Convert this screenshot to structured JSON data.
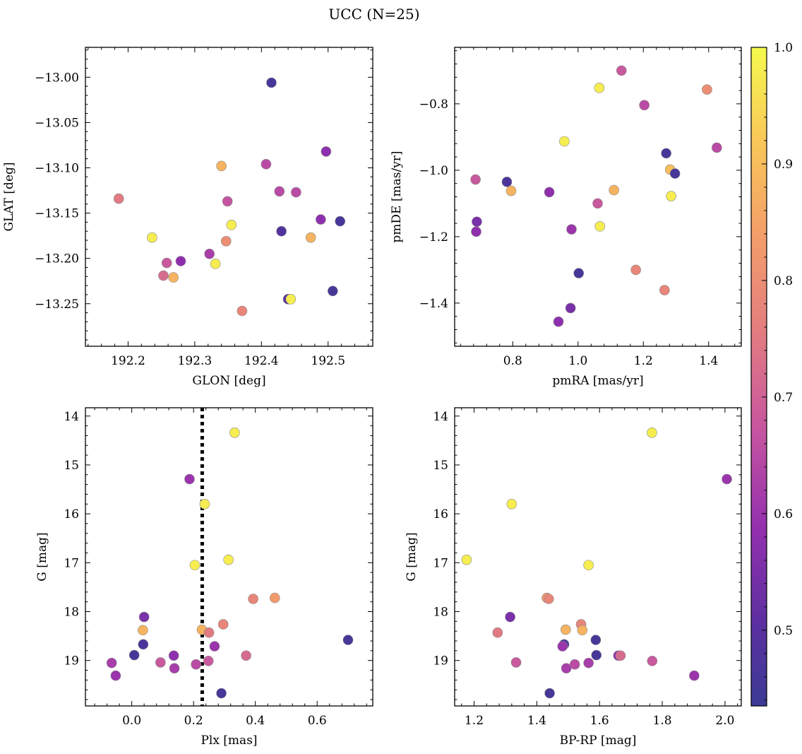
{
  "figure": {
    "title": "UCC (N=25)"
  },
  "colors": {
    "point_edge": "#8a8a8a",
    "ref_line": "#000000",
    "colormap": "plasma"
  },
  "colorbar": {
    "range": [
      0.435,
      1.0
    ],
    "ticks": [
      0.5,
      0.6,
      0.7,
      0.8,
      0.9,
      1.0
    ],
    "tick_labels": [
      "0.5",
      "0.6",
      "0.7",
      "0.8",
      "0.9",
      "1.0"
    ]
  },
  "chart_data": [
    {
      "id": "glon-glat",
      "type": "scatter",
      "xlabel": "GLON [deg]",
      "ylabel": "GLAT [deg]",
      "xlim": [
        192.136,
        192.567
      ],
      "ylim": [
        -13.297,
        -12.967
      ],
      "y_inverted": false,
      "xticks": [
        192.2,
        192.3,
        192.4,
        192.5
      ],
      "xtick_labels": [
        "192.2",
        "192.3",
        "192.4",
        "192.5"
      ],
      "yticks": [
        -13.25,
        -13.2,
        -13.15,
        -13.1,
        -13.05,
        -13.0
      ],
      "ytick_labels": [
        "−13.25",
        "−13.20",
        "−13.15",
        "−13.10",
        "−13.05",
        "−13.00"
      ],
      "points": [
        {
          "x": 192.415,
          "y": -13.006,
          "c": 0.46
        },
        {
          "x": 192.497,
          "y": -13.082,
          "c": 0.58
        },
        {
          "x": 192.407,
          "y": -13.096,
          "c": 0.65
        },
        {
          "x": 192.34,
          "y": -13.098,
          "c": 0.88
        },
        {
          "x": 192.427,
          "y": -13.126,
          "c": 0.65
        },
        {
          "x": 192.452,
          "y": -13.127,
          "c": 0.65
        },
        {
          "x": 192.186,
          "y": -13.134,
          "c": 0.75
        },
        {
          "x": 192.349,
          "y": -13.137,
          "c": 0.67
        },
        {
          "x": 192.489,
          "y": -13.157,
          "c": 0.58
        },
        {
          "x": 192.518,
          "y": -13.159,
          "c": 0.46
        },
        {
          "x": 192.355,
          "y": -13.163,
          "c": 0.98
        },
        {
          "x": 192.43,
          "y": -13.17,
          "c": 0.48
        },
        {
          "x": 192.236,
          "y": -13.177,
          "c": 0.98
        },
        {
          "x": 192.474,
          "y": -13.177,
          "c": 0.88
        },
        {
          "x": 192.347,
          "y": -13.181,
          "c": 0.8
        },
        {
          "x": 192.322,
          "y": -13.195,
          "c": 0.62
        },
        {
          "x": 192.279,
          "y": -13.203,
          "c": 0.58
        },
        {
          "x": 192.258,
          "y": -13.205,
          "c": 0.68
        },
        {
          "x": 192.331,
          "y": -13.206,
          "c": 0.98
        },
        {
          "x": 192.253,
          "y": -13.219,
          "c": 0.72
        },
        {
          "x": 192.268,
          "y": -13.221,
          "c": 0.88
        },
        {
          "x": 192.507,
          "y": -13.236,
          "c": 0.46
        },
        {
          "x": 192.44,
          "y": -13.245,
          "c": 0.5
        },
        {
          "x": 192.444,
          "y": -13.245,
          "c": 0.98
        },
        {
          "x": 192.371,
          "y": -13.258,
          "c": 0.78
        }
      ]
    },
    {
      "id": "pmra-pmde",
      "type": "scatter",
      "xlabel": "pmRA [mas/yr]",
      "ylabel": "pmDE [mas/yr]",
      "xlim": [
        0.622,
        1.5
      ],
      "ylim": [
        -1.53,
        -0.63
      ],
      "y_inverted": false,
      "xticks": [
        0.8,
        1.0,
        1.2,
        1.4
      ],
      "xtick_labels": [
        "0.8",
        "1.0",
        "1.2",
        "1.4"
      ],
      "yticks": [
        -1.4,
        -1.2,
        -1.0,
        -0.8
      ],
      "ytick_labels": [
        "−1.4",
        "−1.2",
        "−1.0",
        "−0.8"
      ],
      "points": [
        {
          "x": 1.133,
          "y": -0.7,
          "c": 0.68
        },
        {
          "x": 1.065,
          "y": -0.752,
          "c": 0.98
        },
        {
          "x": 1.395,
          "y": -0.757,
          "c": 0.8
        },
        {
          "x": 1.203,
          "y": -0.804,
          "c": 0.65
        },
        {
          "x": 0.958,
          "y": -0.913,
          "c": 0.98
        },
        {
          "x": 1.425,
          "y": -0.932,
          "c": 0.65
        },
        {
          "x": 1.27,
          "y": -0.949,
          "c": 0.46
        },
        {
          "x": 1.282,
          "y": -0.998,
          "c": 0.9
        },
        {
          "x": 1.297,
          "y": -1.01,
          "c": 0.46
        },
        {
          "x": 0.686,
          "y": -1.028,
          "c": 0.68
        },
        {
          "x": 0.782,
          "y": -1.035,
          "c": 0.47
        },
        {
          "x": 1.11,
          "y": -1.06,
          "c": 0.88
        },
        {
          "x": 0.795,
          "y": -1.062,
          "c": 0.88
        },
        {
          "x": 0.912,
          "y": -1.066,
          "c": 0.58
        },
        {
          "x": 1.285,
          "y": -1.078,
          "c": 0.98
        },
        {
          "x": 1.06,
          "y": -1.1,
          "c": 0.68
        },
        {
          "x": 0.69,
          "y": -1.155,
          "c": 0.55
        },
        {
          "x": 1.067,
          "y": -1.169,
          "c": 0.98
        },
        {
          "x": 0.98,
          "y": -1.178,
          "c": 0.6
        },
        {
          "x": 0.688,
          "y": -1.185,
          "c": 0.58
        },
        {
          "x": 1.177,
          "y": -1.3,
          "c": 0.78
        },
        {
          "x": 1.002,
          "y": -1.31,
          "c": 0.46
        },
        {
          "x": 1.265,
          "y": -1.361,
          "c": 0.78
        },
        {
          "x": 0.977,
          "y": -1.415,
          "c": 0.55
        },
        {
          "x": 0.94,
          "y": -1.456,
          "c": 0.58
        }
      ]
    },
    {
      "id": "plx-g",
      "type": "scatter",
      "xlabel": "Plx [mas]",
      "ylabel": "G [mag]",
      "xlim": [
        -0.15,
        0.78
      ],
      "ylim": [
        19.93,
        13.83
      ],
      "y_inverted": true,
      "xticks": [
        0.0,
        0.2,
        0.4,
        0.6
      ],
      "xtick_labels": [
        "0.0",
        "0.2",
        "0.4",
        "0.6"
      ],
      "yticks": [
        14,
        15,
        16,
        17,
        18,
        19
      ],
      "ytick_labels": [
        "14",
        "15",
        "16",
        "17",
        "18",
        "19"
      ],
      "vline": {
        "x": 0.228,
        "style": "dotted"
      },
      "points": [
        {
          "x": 0.333,
          "y": 14.34,
          "c": 0.98
        },
        {
          "x": 0.187,
          "y": 15.29,
          "c": 0.6
        },
        {
          "x": 0.236,
          "y": 15.8,
          "c": 0.98
        },
        {
          "x": 0.204,
          "y": 17.05,
          "c": 0.98
        },
        {
          "x": 0.313,
          "y": 16.94,
          "c": 0.98
        },
        {
          "x": 0.393,
          "y": 17.74,
          "c": 0.78
        },
        {
          "x": 0.463,
          "y": 17.72,
          "c": 0.83
        },
        {
          "x": 0.04,
          "y": 18.11,
          "c": 0.55
        },
        {
          "x": 0.036,
          "y": 18.38,
          "c": 0.88
        },
        {
          "x": 0.227,
          "y": 18.37,
          "c": 0.88
        },
        {
          "x": 0.296,
          "y": 18.26,
          "c": 0.78
        },
        {
          "x": 0.25,
          "y": 18.43,
          "c": 0.75
        },
        {
          "x": 0.7,
          "y": 18.58,
          "c": 0.46
        },
        {
          "x": 0.037,
          "y": 18.67,
          "c": 0.47
        },
        {
          "x": 0.268,
          "y": 18.71,
          "c": 0.6
        },
        {
          "x": 0.008,
          "y": 18.89,
          "c": 0.46
        },
        {
          "x": 0.136,
          "y": 18.9,
          "c": 0.58
        },
        {
          "x": 0.37,
          "y": 18.9,
          "c": 0.72
        },
        {
          "x": -0.065,
          "y": 19.05,
          "c": 0.62
        },
        {
          "x": 0.093,
          "y": 19.04,
          "c": 0.68
        },
        {
          "x": 0.248,
          "y": 19.01,
          "c": 0.68
        },
        {
          "x": 0.208,
          "y": 19.08,
          "c": 0.65
        },
        {
          "x": 0.138,
          "y": 19.16,
          "c": 0.62
        },
        {
          "x": -0.052,
          "y": 19.31,
          "c": 0.6
        },
        {
          "x": 0.29,
          "y": 19.67,
          "c": 0.46
        }
      ]
    },
    {
      "id": "bprp-g",
      "type": "scatter",
      "xlabel": "BP-RP [mag]",
      "ylabel": "G [mag]",
      "xlim": [
        1.138,
        2.052
      ],
      "ylim": [
        19.93,
        13.83
      ],
      "y_inverted": true,
      "xticks": [
        1.2,
        1.4,
        1.6,
        1.8,
        2.0
      ],
      "xtick_labels": [
        "1.2",
        "1.4",
        "1.6",
        "1.8",
        "2.0"
      ],
      "yticks": [
        14,
        15,
        16,
        17,
        18,
        19
      ],
      "ytick_labels": [
        "14",
        "15",
        "16",
        "17",
        "18",
        "19"
      ],
      "points": [
        {
          "x": 1.767,
          "y": 14.34,
          "c": 0.98
        },
        {
          "x": 2.006,
          "y": 15.29,
          "c": 0.6
        },
        {
          "x": 1.32,
          "y": 15.8,
          "c": 0.98
        },
        {
          "x": 1.176,
          "y": 16.94,
          "c": 0.98
        },
        {
          "x": 1.565,
          "y": 17.05,
          "c": 0.98
        },
        {
          "x": 1.432,
          "y": 17.72,
          "c": 0.83
        },
        {
          "x": 1.438,
          "y": 17.74,
          "c": 0.78
        },
        {
          "x": 1.315,
          "y": 18.11,
          "c": 0.55
        },
        {
          "x": 1.541,
          "y": 18.26,
          "c": 0.78
        },
        {
          "x": 1.492,
          "y": 18.37,
          "c": 0.88
        },
        {
          "x": 1.545,
          "y": 18.38,
          "c": 0.88
        },
        {
          "x": 1.275,
          "y": 18.43,
          "c": 0.75
        },
        {
          "x": 1.588,
          "y": 18.58,
          "c": 0.46
        },
        {
          "x": 1.487,
          "y": 18.67,
          "c": 0.47
        },
        {
          "x": 1.482,
          "y": 18.71,
          "c": 0.6
        },
        {
          "x": 1.59,
          "y": 18.89,
          "c": 0.46
        },
        {
          "x": 1.66,
          "y": 18.9,
          "c": 0.58
        },
        {
          "x": 1.667,
          "y": 18.9,
          "c": 0.72
        },
        {
          "x": 1.768,
          "y": 19.01,
          "c": 0.68
        },
        {
          "x": 1.334,
          "y": 19.04,
          "c": 0.68
        },
        {
          "x": 1.565,
          "y": 19.05,
          "c": 0.62
        },
        {
          "x": 1.521,
          "y": 19.08,
          "c": 0.65
        },
        {
          "x": 1.494,
          "y": 19.16,
          "c": 0.62
        },
        {
          "x": 1.902,
          "y": 19.31,
          "c": 0.6
        },
        {
          "x": 1.441,
          "y": 19.67,
          "c": 0.46
        }
      ]
    }
  ]
}
